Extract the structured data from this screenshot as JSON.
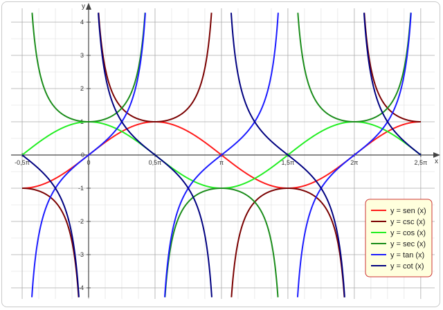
{
  "chart_data": {
    "type": "line",
    "xlabel": "x",
    "ylabel": "y",
    "xlim": [
      -1.5708,
      7.854
    ],
    "ylim": [
      -4.2,
      4.2
    ],
    "grid": true,
    "legend_position": "bottom-right",
    "x_ticks": [
      {
        "value": -1.5708,
        "label": "-0,5π"
      },
      {
        "value": 0,
        "label": "0"
      },
      {
        "value": 1.5708,
        "label": "0,5π"
      },
      {
        "value": 3.1416,
        "label": "π"
      },
      {
        "value": 4.7124,
        "label": "1,5π"
      },
      {
        "value": 6.2832,
        "label": "2π"
      },
      {
        "value": 7.854,
        "label": "2,5π"
      }
    ],
    "y_ticks": [
      {
        "value": 4,
        "label": "4"
      },
      {
        "value": 3,
        "label": "3"
      },
      {
        "value": 2,
        "label": "2"
      },
      {
        "value": 1,
        "label": "1"
      },
      {
        "value": 0,
        "label": "0"
      },
      {
        "value": -1,
        "label": "-1"
      },
      {
        "value": -2,
        "label": "-2"
      },
      {
        "value": -3,
        "label": "-3"
      },
      {
        "value": -4,
        "label": "-4"
      }
    ],
    "series": [
      {
        "name": "y = sen (x)",
        "function": "sin",
        "color": "#ff1a1a"
      },
      {
        "name": "y = csc (x)",
        "function": "csc",
        "color": "#7a0000"
      },
      {
        "name": "y = cos (x)",
        "function": "cos",
        "color": "#22ee22"
      },
      {
        "name": "y = sec (x)",
        "function": "sec",
        "color": "#1a8c1a"
      },
      {
        "name": "y = tan (x)",
        "function": "tan",
        "color": "#1a1aff"
      },
      {
        "name": "y = cot (x)",
        "function": "cot",
        "color": "#000080"
      }
    ],
    "legend_colors": {
      "background": "#ffffdd",
      "border": "#cc3333"
    },
    "grid_colors": {
      "major": "#aaaaaa",
      "minor": "#dddddd"
    }
  }
}
